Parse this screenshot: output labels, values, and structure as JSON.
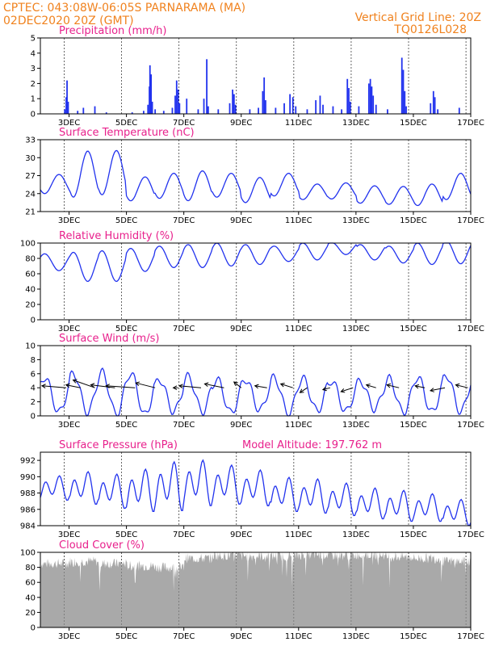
{
  "header": {
    "left_line1": "CPTEC:   043:08W-06:05S   PARNARAMA (MA)",
    "left_line2": "02DEC2020 20Z (GMT)",
    "right_line1": "Vertical Grid Line: 20Z",
    "right_line2": "TQ0126L028"
  },
  "colors": {
    "header": "#f0821e",
    "title": "#e8208c",
    "series": "#2233ee",
    "cloud": "#a9a9a9",
    "wind_arrow": "#000000"
  },
  "chart_data": [
    {
      "type": "bar",
      "title": "Precipitation  (mm/h)",
      "ylim": [
        0,
        5
      ],
      "yticks": [
        0,
        1,
        2,
        3,
        4,
        5
      ],
      "xticks": [
        "3DEC",
        "5DEC",
        "7DEC",
        "9DEC",
        "11DEC",
        "13DEC",
        "15DEC",
        "17DEC"
      ],
      "events": [
        {
          "day": 2.85,
          "v": 0.3
        },
        {
          "day": 2.9,
          "v": 1.1
        },
        {
          "day": 2.93,
          "v": 2.2
        },
        {
          "day": 2.97,
          "v": 0.8
        },
        {
          "day": 3.3,
          "v": 0.2
        },
        {
          "day": 3.5,
          "v": 0.4
        },
        {
          "day": 3.9,
          "v": 0.5
        },
        {
          "day": 4.3,
          "v": 0.1
        },
        {
          "day": 5.2,
          "v": 0.1
        },
        {
          "day": 5.6,
          "v": 0.2
        },
        {
          "day": 5.75,
          "v": 0.6
        },
        {
          "day": 5.8,
          "v": 1.8
        },
        {
          "day": 5.82,
          "v": 3.2
        },
        {
          "day": 5.86,
          "v": 2.6
        },
        {
          "day": 5.9,
          "v": 0.8
        },
        {
          "day": 6.0,
          "v": 0.3
        },
        {
          "day": 6.3,
          "v": 0.2
        },
        {
          "day": 6.6,
          "v": 0.4
        },
        {
          "day": 6.7,
          "v": 1.2
        },
        {
          "day": 6.75,
          "v": 2.2
        },
        {
          "day": 6.8,
          "v": 1.6
        },
        {
          "day": 6.85,
          "v": 0.7
        },
        {
          "day": 7.1,
          "v": 1.0
        },
        {
          "day": 7.5,
          "v": 0.3
        },
        {
          "day": 7.7,
          "v": 1.0
        },
        {
          "day": 7.8,
          "v": 3.6
        },
        {
          "day": 7.85,
          "v": 0.5
        },
        {
          "day": 8.2,
          "v": 0.3
        },
        {
          "day": 8.6,
          "v": 0.7
        },
        {
          "day": 8.7,
          "v": 1.6
        },
        {
          "day": 8.75,
          "v": 1.3
        },
        {
          "day": 8.8,
          "v": 0.6
        },
        {
          "day": 9.3,
          "v": 0.3
        },
        {
          "day": 9.6,
          "v": 0.4
        },
        {
          "day": 9.75,
          "v": 1.5
        },
        {
          "day": 9.8,
          "v": 2.4
        },
        {
          "day": 9.85,
          "v": 0.9
        },
        {
          "day": 10.2,
          "v": 0.4
        },
        {
          "day": 10.5,
          "v": 0.7
        },
        {
          "day": 10.7,
          "v": 1.3
        },
        {
          "day": 10.8,
          "v": 1.1
        },
        {
          "day": 10.9,
          "v": 0.5
        },
        {
          "day": 11.3,
          "v": 0.3
        },
        {
          "day": 11.6,
          "v": 0.9
        },
        {
          "day": 11.75,
          "v": 1.2
        },
        {
          "day": 11.85,
          "v": 0.6
        },
        {
          "day": 12.2,
          "v": 0.5
        },
        {
          "day": 12.5,
          "v": 0.3
        },
        {
          "day": 12.7,
          "v": 2.3
        },
        {
          "day": 12.75,
          "v": 1.7
        },
        {
          "day": 12.8,
          "v": 0.8
        },
        {
          "day": 13.1,
          "v": 0.5
        },
        {
          "day": 13.45,
          "v": 2.0
        },
        {
          "day": 13.5,
          "v": 2.3
        },
        {
          "day": 13.55,
          "v": 1.8
        },
        {
          "day": 13.6,
          "v": 1.2
        },
        {
          "day": 13.7,
          "v": 0.6
        },
        {
          "day": 14.1,
          "v": 0.3
        },
        {
          "day": 14.6,
          "v": 3.7
        },
        {
          "day": 14.65,
          "v": 2.9
        },
        {
          "day": 14.7,
          "v": 1.5
        },
        {
          "day": 14.75,
          "v": 0.5
        },
        {
          "day": 15.6,
          "v": 0.7
        },
        {
          "day": 15.7,
          "v": 1.5
        },
        {
          "day": 15.75,
          "v": 1.1
        },
        {
          "day": 15.85,
          "v": 0.3
        },
        {
          "day": 16.6,
          "v": 0.4
        }
      ]
    },
    {
      "type": "line",
      "title": "Surface Temperature  (nC)",
      "ylim": [
        21,
        33
      ],
      "yticks": [
        21,
        24,
        27,
        30,
        33
      ],
      "xticks": [
        "3DEC",
        "5DEC",
        "7DEC",
        "9DEC",
        "11DEC",
        "13DEC",
        "15DEC",
        "17DEC"
      ],
      "diurnal": {
        "base": [
          24.0,
          23.4,
          23.8,
          22.8,
          23.2,
          22.8,
          23.4,
          22.5,
          23.6,
          23.0,
          23.1,
          22.4,
          22.2,
          22.0,
          23.0
        ],
        "amp": [
          3.2,
          7.7,
          7.4,
          4.0,
          4.2,
          5.0,
          4.0,
          4.2,
          3.8,
          2.6,
          2.7,
          2.9,
          3.0,
          3.6,
          4.4
        ]
      }
    },
    {
      "type": "line",
      "title": "Relative Humidity  (%)",
      "ylim": [
        0,
        100
      ],
      "yticks": [
        0,
        20,
        40,
        60,
        80,
        100
      ],
      "xticks": [
        "3DEC",
        "5DEC",
        "7DEC",
        "9DEC",
        "11DEC",
        "13DEC",
        "15DEC",
        "17DEC"
      ],
      "diurnal": {
        "base": [
          78,
          80,
          82,
          85,
          88,
          90,
          92,
          90,
          88,
          92,
          93,
          90,
          88,
          92,
          95
        ],
        "amp": [
          22,
          38,
          40,
          30,
          28,
          30,
          30,
          26,
          20,
          22,
          16,
          20,
          22,
          28,
          30
        ]
      }
    },
    {
      "type": "line",
      "title": "Surface Wind  (m/s)",
      "ylim": [
        0,
        10
      ],
      "yticks": [
        0,
        2,
        4,
        6,
        8,
        10
      ],
      "xticks": [
        "3DEC",
        "5DEC",
        "7DEC",
        "9DEC",
        "11DEC",
        "13DEC",
        "15DEC",
        "17DEC"
      ],
      "diurnal": {
        "base": [
          3.0,
          3.3,
          3.2,
          3.1,
          2.9,
          3.1,
          2.8,
          3.0,
          2.9,
          3.0,
          2.8,
          3.0,
          2.9,
          3.0,
          3.2
        ],
        "amp": [
          2.5,
          2.8,
          3.0,
          3.0,
          2.3,
          2.5,
          2.4,
          2.2,
          2.6,
          2.3,
          2.2,
          2.0,
          2.4,
          2.5,
          2.6
        ]
      },
      "vectors": [
        {
          "day": 2.9,
          "dx": -1.0,
          "dy": 0.2
        },
        {
          "day": 3.4,
          "dx": -0.6,
          "dy": 0.3
        },
        {
          "day": 3.9,
          "dx": -0.9,
          "dy": 0.8
        },
        {
          "day": 4.6,
          "dx": -1.0,
          "dy": 0.3
        },
        {
          "day": 5.3,
          "dx": -1.2,
          "dy": 0.2
        },
        {
          "day": 6.0,
          "dx": -0.8,
          "dy": 0.5
        },
        {
          "day": 6.8,
          "dx": -0.2,
          "dy": 0.0
        },
        {
          "day": 7.6,
          "dx": -0.9,
          "dy": 0.2
        },
        {
          "day": 8.4,
          "dx": -0.8,
          "dy": 0.4
        },
        {
          "day": 9.0,
          "dx": -0.3,
          "dy": 0.6
        },
        {
          "day": 9.9,
          "dx": -0.5,
          "dy": 0.2
        },
        {
          "day": 10.8,
          "dx": -0.5,
          "dy": 0.4
        },
        {
          "day": 11.3,
          "dx": -0.3,
          "dy": -0.5
        },
        {
          "day": 12.1,
          "dx": -0.3,
          "dy": -0.2
        },
        {
          "day": 12.9,
          "dx": -0.5,
          "dy": -0.4
        },
        {
          "day": 13.7,
          "dx": -0.4,
          "dy": 0.3
        },
        {
          "day": 14.5,
          "dx": -0.5,
          "dy": 0.3
        },
        {
          "day": 15.4,
          "dx": -0.4,
          "dy": 0.2
        },
        {
          "day": 16.1,
          "dx": -0.6,
          "dy": -0.3
        },
        {
          "day": 16.9,
          "dx": -0.5,
          "dy": 0.3
        }
      ]
    },
    {
      "type": "line",
      "title": "Surface Pressure  (hPa)",
      "annotation": "Model Altitude: 197.762  m",
      "ylim": [
        984,
        993
      ],
      "yticks": [
        984,
        986,
        988,
        990,
        992
      ],
      "xticks": [
        "3DEC",
        "5DEC",
        "7DEC",
        "9DEC",
        "11DEC",
        "13DEC",
        "15DEC",
        "17DEC"
      ],
      "semidiurnal": {
        "base": [
          988.6,
          988.6,
          988.2,
          988.3,
          988.8,
          989.2,
          989.0,
          988.6,
          987.8,
          987.6,
          987.2,
          986.7,
          986.4,
          986.2,
          985.6
        ],
        "amp": [
          1.5,
          2.0,
          2.1,
          2.6,
          3.0,
          2.8,
          2.4,
          2.2,
          2.1,
          2.1,
          2.0,
          1.9,
          1.9,
          1.7,
          1.6
        ]
      }
    },
    {
      "type": "area",
      "title": "Cloud Cover  (%)",
      "ylim": [
        0,
        100
      ],
      "yticks": [
        0,
        20,
        40,
        60,
        80,
        100
      ],
      "xticks": [
        "3DEC",
        "5DEC",
        "7DEC",
        "9DEC",
        "11DEC",
        "13DEC",
        "15DEC",
        "17DEC"
      ],
      "daily_mean": [
        85,
        88,
        85,
        82,
        80,
        92,
        96,
        95,
        95,
        97,
        96,
        97,
        94,
        92,
        88
      ]
    }
  ]
}
